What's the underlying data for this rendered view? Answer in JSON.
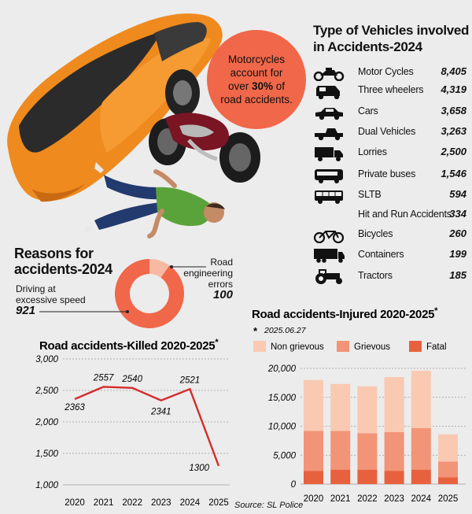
{
  "bubble": {
    "line1": "Motorcycles",
    "line2": "account for",
    "line3_pre": "over ",
    "line3_bold": "30%",
    "line3_post": " of",
    "line4": "road accidents."
  },
  "vehicles": {
    "title_line1": "Type of Vehicles involved",
    "title_line2": "in Accidents-2024",
    "items": [
      {
        "label": "Motor Cycles",
        "value": "8,405",
        "icon": "motorcycle-icon"
      },
      {
        "label": "Three wheelers",
        "value": "4,319",
        "icon": "three-wheeler-icon"
      },
      {
        "label": "Cars",
        "value": "3,658",
        "icon": "car-icon"
      },
      {
        "label": "Dual Vehicles",
        "value": "3,263",
        "icon": "pickup-icon"
      },
      {
        "label": "Lorries",
        "value": "2,500",
        "icon": "lorry-icon"
      },
      {
        "label": "Private buses",
        "value": "1,546",
        "icon": "bus-icon"
      },
      {
        "label": "SLTB",
        "value": "594",
        "icon": "sltb-bus-icon"
      },
      {
        "label": "Hit and Run Accidents",
        "value": "334",
        "icon": ""
      },
      {
        "label": "Bicycles",
        "value": "260",
        "icon": "bicycle-icon"
      },
      {
        "label": "Containers",
        "value": "199",
        "icon": "container-truck-icon"
      },
      {
        "label": "Tractors",
        "value": "185",
        "icon": "tractor-icon"
      }
    ]
  },
  "reasons": {
    "title_line1": "Reasons for",
    "title_line2": "accidents-2024",
    "speed_label_line1": "Driving at",
    "speed_label_line2": "excessive speed",
    "speed_value": "921",
    "road_label_line1": "Road",
    "road_label_line2": "engineering",
    "road_label_line3": "errors",
    "road_value": "100",
    "colors": {
      "speed": "#f0674a",
      "road": "#f8b9a2"
    }
  },
  "chart_data": [
    {
      "type": "line",
      "title": "Road accidents-Killed 2020-2025",
      "title_mark": "*",
      "categories": [
        "2020",
        "2021",
        "2022",
        "2023",
        "2024",
        "2025"
      ],
      "values": [
        2363,
        2557,
        2540,
        2341,
        2521,
        1300
      ],
      "yticks": [
        "1,000",
        "1,500",
        "2,000",
        "2,500",
        "3,000"
      ],
      "ylim": [
        1000,
        3000
      ],
      "color": "#d62b2b",
      "grid": true
    },
    {
      "type": "bar",
      "stacked": true,
      "title": "Road accidents-Injured 2020-2025",
      "title_mark": "*",
      "note_mark": "*",
      "note": "2025.06.27",
      "categories": [
        "2020",
        "2021",
        "2022",
        "2023",
        "2024",
        "2025"
      ],
      "series": [
        {
          "name": "Fatal",
          "values": [
            2300,
            2500,
            2500,
            2300,
            2500,
            1200
          ],
          "color": "#e8613f"
        },
        {
          "name": "Grievous",
          "values": [
            6900,
            6700,
            6300,
            6700,
            7200,
            2700
          ],
          "color": "#f29477"
        },
        {
          "name": "Non grievous",
          "values": [
            8800,
            8100,
            8100,
            9500,
            9900,
            4700
          ],
          "color": "#f9c9b2"
        }
      ],
      "legend_order": [
        "Non grievous",
        "Grievous",
        "Fatal"
      ],
      "yticks": [
        "0",
        "5,000",
        "10,000",
        "15,000",
        "20,000"
      ],
      "ylim": [
        0,
        20000
      ],
      "grid": true
    }
  ],
  "source": "Source: SL Police"
}
